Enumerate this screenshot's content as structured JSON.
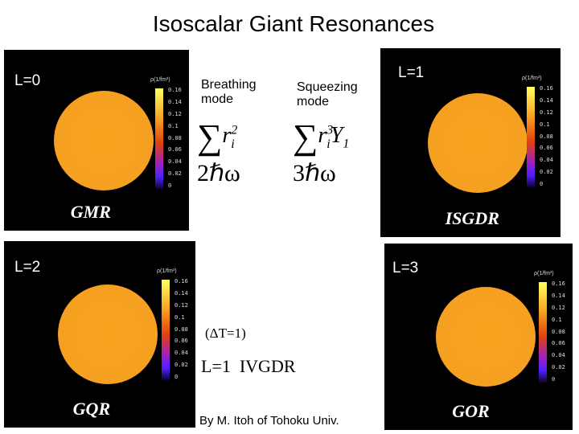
{
  "title": "Isoscalar Giant Resonances",
  "panels": [
    {
      "label": "L=0",
      "name": "GMR",
      "unit": "ρ(1/fm³)",
      "scale": [
        "0.16",
        "0.14",
        "0.12",
        "0.1",
        "0.08",
        "0.06",
        "0.04",
        "0.02",
        "0"
      ]
    },
    {
      "label": "L=1",
      "name": "ISGDR",
      "unit": "ρ(1/fm³)",
      "scale": [
        "0.16",
        "0.14",
        "0.12",
        "0.1",
        "0.08",
        "0.06",
        "0.04",
        "0.02",
        "0"
      ]
    },
    {
      "label": "L=2",
      "name": "GQR",
      "unit": "ρ(1/fm³)",
      "scale": [
        "0.16",
        "0.14",
        "0.12",
        "0.1",
        "0.08",
        "0.06",
        "0.04",
        "0.02",
        "0"
      ]
    },
    {
      "label": "L=3",
      "name": "GOR",
      "unit": "ρ(1/fm³)",
      "scale": [
        "0.16",
        "0.14",
        "0.12",
        "0.1",
        "0.08",
        "0.06",
        "0.04",
        "0.02",
        "0"
      ]
    }
  ],
  "modes": [
    {
      "name": "Breathing mode",
      "operator": {
        "sum": "∑",
        "r": "r",
        "sub": "i",
        "sup": "2"
      },
      "energy": "2ℏω"
    },
    {
      "name": "Squeezing mode",
      "operator": {
        "sum": "∑",
        "r": "r",
        "sub": "i",
        "sup": "3",
        "y": "Y",
        "ysub": "1"
      },
      "energy": "3ℏω"
    }
  ],
  "annotations": {
    "isospin": "(ΔT=1)",
    "ivgdr": "L=1  IVGDR"
  },
  "credit": "By M. Itoh of Tohoku Univ."
}
